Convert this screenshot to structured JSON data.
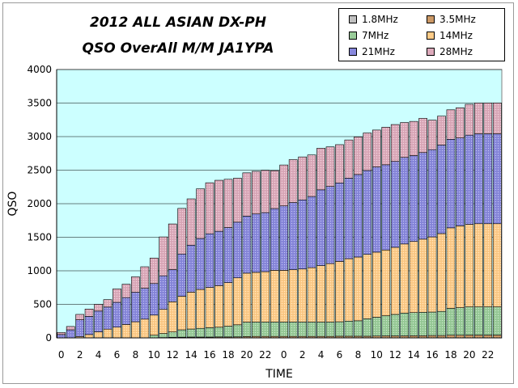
{
  "chart_data": {
    "type": "bar",
    "stacked": true,
    "title": "2012 ALL ASIAN DX-PH",
    "subtitle": "QSO OverAll M/M JA1YPA",
    "xlabel": "TIME",
    "ylabel": "QSO",
    "ylim": [
      0,
      4000
    ],
    "yticks": [
      0,
      500,
      1000,
      1500,
      2000,
      2500,
      3000,
      3500,
      4000
    ],
    "categories": [
      "0",
      "1",
      "2",
      "3",
      "4",
      "5",
      "6",
      "7",
      "8",
      "9",
      "10",
      "11",
      "12",
      "13",
      "14",
      "15",
      "16",
      "17",
      "18",
      "19",
      "20",
      "21",
      "22",
      "23",
      "0",
      "1",
      "2",
      "3",
      "4",
      "5",
      "6",
      "7",
      "8",
      "9",
      "10",
      "11",
      "12",
      "13",
      "14",
      "15",
      "16",
      "17",
      "18",
      "19",
      "20",
      "21",
      "22",
      "23"
    ],
    "x_tick_labels": [
      "0",
      "2",
      "4",
      "6",
      "8",
      "10",
      "12",
      "14",
      "16",
      "18",
      "20",
      "22",
      "0",
      "2",
      "4",
      "6",
      "8",
      "10",
      "12",
      "14",
      "16",
      "18",
      "20",
      "22"
    ],
    "legend_position": "top-right",
    "legend_columns": 2,
    "plot_background": "#ccffff",
    "series": [
      {
        "name": "1.8MHz",
        "color": "#c0c0c0",
        "pattern": "dots",
        "values": [
          0,
          0,
          0,
          0,
          0,
          0,
          0,
          0,
          0,
          0,
          0,
          0,
          0,
          0,
          0,
          0,
          0,
          0,
          0,
          0,
          0,
          0,
          0,
          0,
          0,
          0,
          0,
          0,
          0,
          0,
          0,
          0,
          0,
          0,
          0,
          0,
          0,
          0,
          0,
          0,
          0,
          0,
          0,
          0,
          0,
          0,
          0,
          0
        ]
      },
      {
        "name": "3.5MHz",
        "color": "#cc9966",
        "pattern": "dots",
        "values": [
          0,
          0,
          0,
          0,
          0,
          0,
          0,
          0,
          0,
          0,
          0,
          5,
          8,
          10,
          12,
          12,
          12,
          14,
          14,
          15,
          20,
          22,
          22,
          22,
          22,
          22,
          22,
          22,
          22,
          22,
          25,
          25,
          25,
          25,
          28,
          30,
          30,
          30,
          32,
          32,
          35,
          35,
          40,
          40,
          42,
          42,
          42,
          42
        ]
      },
      {
        "name": "7MHz",
        "color": "#99cc99",
        "pattern": "dots",
        "values": [
          0,
          0,
          0,
          0,
          0,
          0,
          0,
          0,
          0,
          0,
          40,
          60,
          80,
          110,
          120,
          130,
          140,
          145,
          160,
          180,
          215,
          215,
          215,
          215,
          215,
          215,
          215,
          215,
          215,
          215,
          215,
          225,
          230,
          260,
          280,
          300,
          320,
          340,
          345,
          350,
          350,
          360,
          400,
          410,
          420,
          420,
          420,
          420
        ]
      },
      {
        "name": "14MHz",
        "color": "#ffcc88",
        "pattern": "dots",
        "values": [
          0,
          0,
          20,
          50,
          90,
          130,
          160,
          200,
          240,
          280,
          300,
          360,
          450,
          500,
          550,
          580,
          600,
          620,
          650,
          700,
          730,
          740,
          750,
          770,
          770,
          780,
          790,
          810,
          840,
          870,
          900,
          930,
          950,
          960,
          970,
          980,
          1000,
          1030,
          1060,
          1090,
          1120,
          1160,
          1200,
          1220,
          1230,
          1240,
          1240,
          1240
        ]
      },
      {
        "name": "21MHz",
        "color": "#8888dd",
        "pattern": "dots",
        "values": [
          50,
          120,
          250,
          270,
          310,
          330,
          370,
          400,
          440,
          460,
          470,
          500,
          480,
          630,
          700,
          760,
          800,
          810,
          820,
          830,
          850,
          870,
          880,
          920,
          960,
          1000,
          1030,
          1060,
          1130,
          1150,
          1170,
          1200,
          1230,
          1250,
          1270,
          1270,
          1280,
          1290,
          1280,
          1290,
          1300,
          1320,
          1320,
          1310,
          1330,
          1340,
          1340,
          1340
        ]
      },
      {
        "name": "28MHz",
        "color": "#ddaabb",
        "pattern": "dots",
        "values": [
          30,
          50,
          80,
          110,
          100,
          110,
          200,
          200,
          230,
          320,
          380,
          580,
          680,
          680,
          690,
          740,
          760,
          760,
          720,
          655,
          645,
          635,
          630,
          565,
          610,
          640,
          640,
          620,
          620,
          590,
          570,
          570,
          560,
          560,
          550,
          560,
          550,
          520,
          510,
          510,
          440,
          430,
          440,
          450,
          460,
          460,
          460,
          460
        ]
      }
    ]
  }
}
